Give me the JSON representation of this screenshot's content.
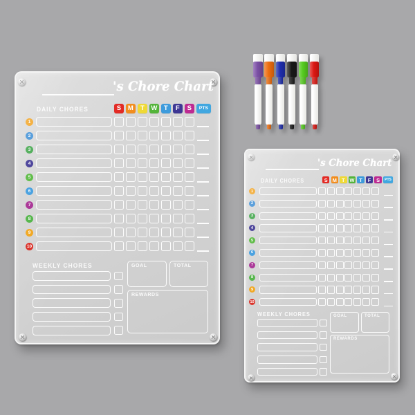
{
  "scene": {
    "background_color": "#a8a8aa"
  },
  "board": {
    "title_script": "'s Chore Chart",
    "daily_label": "DAILY CHORES",
    "weekly_label": "WEEKLY CHORES",
    "goal_label": "GOAL",
    "total_label": "TOTAL",
    "rewards_label": "REWARDS",
    "pts_label": "PTS",
    "pts_color": "#41A7E0",
    "days": [
      {
        "label": "S",
        "color": "#E2251F"
      },
      {
        "label": "M",
        "color": "#F28C1B"
      },
      {
        "label": "T",
        "color": "#EFD935"
      },
      {
        "label": "W",
        "color": "#53B43A"
      },
      {
        "label": "T",
        "color": "#3D9BDC"
      },
      {
        "label": "F",
        "color": "#3E3794"
      },
      {
        "label": "S",
        "color": "#BE2A92"
      }
    ],
    "rows": [
      {
        "number": "1",
        "color": "#F2A21F"
      },
      {
        "number": "2",
        "color": "#3E8FD6"
      },
      {
        "number": "3",
        "color": "#3FA549"
      },
      {
        "number": "4",
        "color": "#3A3191"
      },
      {
        "number": "5",
        "color": "#54B83B"
      },
      {
        "number": "6",
        "color": "#3E9CDF"
      },
      {
        "number": "7",
        "color": "#A62C92"
      },
      {
        "number": "8",
        "color": "#4DB343"
      },
      {
        "number": "9",
        "color": "#F0A51C"
      },
      {
        "number": "10",
        "color": "#D92A21"
      }
    ],
    "weekly_row_count": 5
  },
  "markers": [
    {
      "name": "purple-marker",
      "color": "#7B4FA5"
    },
    {
      "name": "orange-marker",
      "color": "#EE6D0E"
    },
    {
      "name": "blue-marker",
      "color": "#1E2DAD"
    },
    {
      "name": "black-marker",
      "color": "#191919"
    },
    {
      "name": "green-marker",
      "color": "#55CB1F"
    },
    {
      "name": "red-marker",
      "color": "#DC1712"
    }
  ]
}
